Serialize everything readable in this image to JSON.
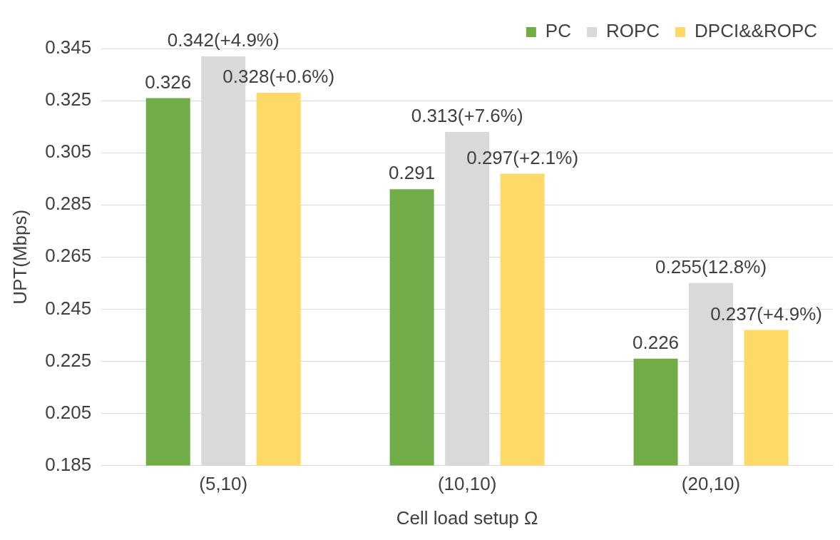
{
  "chart_data": {
    "type": "bar",
    "xlabel": "Cell load setup Ω",
    "ylabel": "UPT(Mbps)",
    "categories": [
      "(5,10)",
      "(10,10)",
      "(20,10)"
    ],
    "series": [
      {
        "name": "PC",
        "color": "#70ad47",
        "values": [
          0.326,
          0.291,
          0.226
        ],
        "value_labels": [
          "0.326",
          "0.291",
          "0.226"
        ]
      },
      {
        "name": "ROPC",
        "color": "#d9d9d9",
        "values": [
          0.342,
          0.313,
          0.255
        ],
        "value_labels": [
          "0.342(+4.9%)",
          "0.313(+7.6%)",
          "0.255(12.8%)"
        ]
      },
      {
        "name": "DPCI&&ROPC",
        "color": "#ffd966",
        "values": [
          0.328,
          0.297,
          0.237
        ],
        "value_labels": [
          "0.328(+0.6%)",
          "0.297(+2.1%)",
          "0.237(+4.9%)"
        ]
      }
    ],
    "ylim": [
      0.185,
      0.345
    ],
    "yticks": [
      0.185,
      0.205,
      0.225,
      0.245,
      0.265,
      0.285,
      0.305,
      0.325,
      0.345
    ],
    "grid": "y",
    "legend": "top right"
  }
}
